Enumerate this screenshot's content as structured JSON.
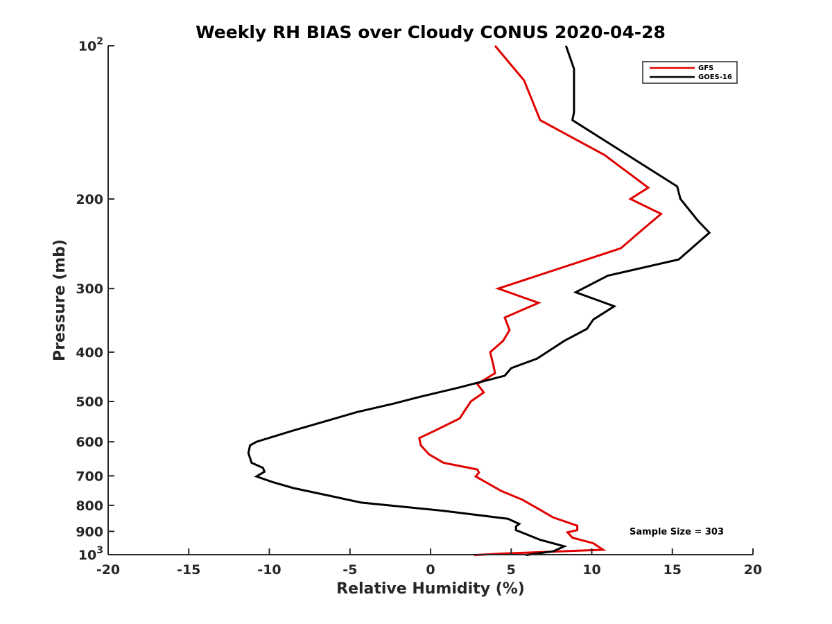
{
  "chart_data": {
    "type": "line",
    "title": "Weekly RH BIAS over Cloudy CONUS 2020-04-28",
    "xlabel": "Relative Humidity (%)",
    "ylabel": "Pressure (mb)",
    "xlim": [
      -20,
      20
    ],
    "ylim": [
      100,
      1000
    ],
    "y_scale": "log",
    "y_reversed": true,
    "grid": false,
    "legend_position": "top-right",
    "x_ticks": [
      "-20",
      "-15",
      "-10",
      "-5",
      "0",
      "5",
      "10",
      "15",
      "20"
    ],
    "y_ticks": [
      {
        "value": 100,
        "base": "10",
        "exp": "2"
      },
      {
        "value": 200,
        "label": "200"
      },
      {
        "value": 300,
        "label": "300"
      },
      {
        "value": 400,
        "label": "400"
      },
      {
        "value": 500,
        "label": "500"
      },
      {
        "value": 600,
        "label": "600"
      },
      {
        "value": 700,
        "label": "700"
      },
      {
        "value": 800,
        "label": "800"
      },
      {
        "value": 900,
        "label": "900"
      },
      {
        "value": 1000,
        "base": "10",
        "exp": "3"
      }
    ],
    "series": [
      {
        "name": "GFS",
        "color": "#e00000",
        "points": [
          [
            4.0,
            100
          ],
          [
            5.8,
            117
          ],
          [
            6.8,
            140
          ],
          [
            10.8,
            164
          ],
          [
            13.5,
            190
          ],
          [
            12.4,
            200
          ],
          [
            14.3,
            214
          ],
          [
            13.2,
            229
          ],
          [
            11.8,
            250
          ],
          [
            4.2,
            300
          ],
          [
            6.7,
            320
          ],
          [
            4.6,
            342
          ],
          [
            4.9,
            362
          ],
          [
            4.5,
            380
          ],
          [
            3.7,
            400
          ],
          [
            3.9,
            425
          ],
          [
            4.0,
            440
          ],
          [
            2.9,
            462
          ],
          [
            3.3,
            480
          ],
          [
            2.5,
            500
          ],
          [
            1.8,
            540
          ],
          [
            0.3,
            570
          ],
          [
            -0.7,
            590
          ],
          [
            -0.6,
            610
          ],
          [
            -0.1,
            635
          ],
          [
            0.8,
            660
          ],
          [
            2.9,
            680
          ],
          [
            3.0,
            690
          ],
          [
            2.8,
            702
          ],
          [
            4.4,
            750
          ],
          [
            5.7,
            780
          ],
          [
            6.9,
            820
          ],
          [
            7.6,
            845
          ],
          [
            9.1,
            877
          ],
          [
            9.1,
            895
          ],
          [
            8.5,
            904
          ],
          [
            8.8,
            926
          ],
          [
            10.1,
            950
          ],
          [
            10.7,
            978
          ],
          [
            4.5,
            995
          ],
          [
            2.7,
            1002
          ]
        ]
      },
      {
        "name": "GOES-16",
        "color": "#000000",
        "points": [
          [
            8.4,
            100
          ],
          [
            8.9,
            111
          ],
          [
            8.9,
            135
          ],
          [
            8.8,
            140
          ],
          [
            13.0,
            170
          ],
          [
            15.3,
            189
          ],
          [
            15.5,
            200
          ],
          [
            16.6,
            221
          ],
          [
            17.3,
            233
          ],
          [
            15.4,
            263
          ],
          [
            11.0,
            283
          ],
          [
            9.0,
            305
          ],
          [
            11.4,
            325
          ],
          [
            10.1,
            345
          ],
          [
            9.7,
            360
          ],
          [
            8.3,
            380
          ],
          [
            6.6,
            412
          ],
          [
            5.0,
            430
          ],
          [
            4.6,
            445
          ],
          [
            1.7,
            470
          ],
          [
            -0.7,
            490
          ],
          [
            -2.3,
            505
          ],
          [
            -4.6,
            525
          ],
          [
            -6.8,
            550
          ],
          [
            -8.5,
            570
          ],
          [
            -10.8,
            600
          ],
          [
            -11.2,
            610
          ],
          [
            -11.3,
            632
          ],
          [
            -11.1,
            660
          ],
          [
            -10.4,
            675
          ],
          [
            -10.3,
            687
          ],
          [
            -10.8,
            702
          ],
          [
            -9.8,
            720
          ],
          [
            -8.5,
            740
          ],
          [
            -6.2,
            767
          ],
          [
            -4.3,
            790
          ],
          [
            0.8,
            820
          ],
          [
            4.8,
            850
          ],
          [
            5.5,
            870
          ],
          [
            5.3,
            880
          ],
          [
            5.3,
            895
          ],
          [
            6.8,
            935
          ],
          [
            8.3,
            963
          ],
          [
            7.6,
            985
          ],
          [
            5.9,
            1002
          ]
        ]
      }
    ],
    "annotations": [
      {
        "text": "Sample Size = 303",
        "position": "lower-right"
      }
    ]
  }
}
